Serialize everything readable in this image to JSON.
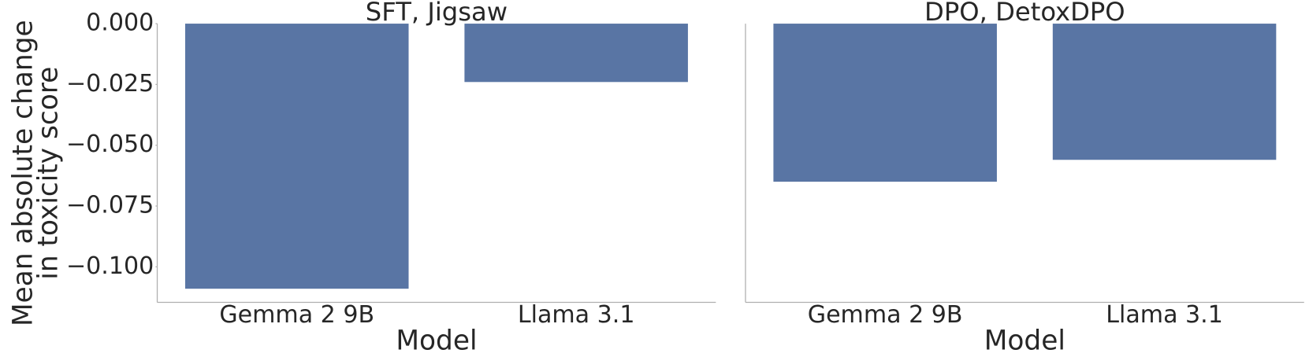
{
  "chart_data": [
    {
      "type": "bar",
      "title": "SFT, Jigsaw",
      "xlabel": "Model",
      "ylabel": [
        "Mean absolute change",
        "in toxicity score"
      ],
      "categories": [
        "Gemma 2 9B",
        "Llama 3.1"
      ],
      "values": [
        -0.109,
        -0.024
      ],
      "color": "#5975a4",
      "ylim": [
        -0.1146,
        0
      ],
      "yticks": [
        {
          "value": 0,
          "label": "0.000"
        },
        {
          "value": -0.025,
          "label": "−0.025"
        },
        {
          "value": -0.05,
          "label": "−0.050"
        },
        {
          "value": -0.075,
          "label": "−0.075"
        },
        {
          "value": -0.1,
          "label": "−0.100"
        }
      ]
    },
    {
      "type": "bar",
      "title": "DPO, DetoxDPO",
      "xlabel": "Model",
      "categories": [
        "Gemma 2 9B",
        "Llama 3.1"
      ],
      "values": [
        -0.065,
        -0.056
      ],
      "color": "#5975a4",
      "ylim": [
        -0.1146,
        0
      ]
    }
  ]
}
